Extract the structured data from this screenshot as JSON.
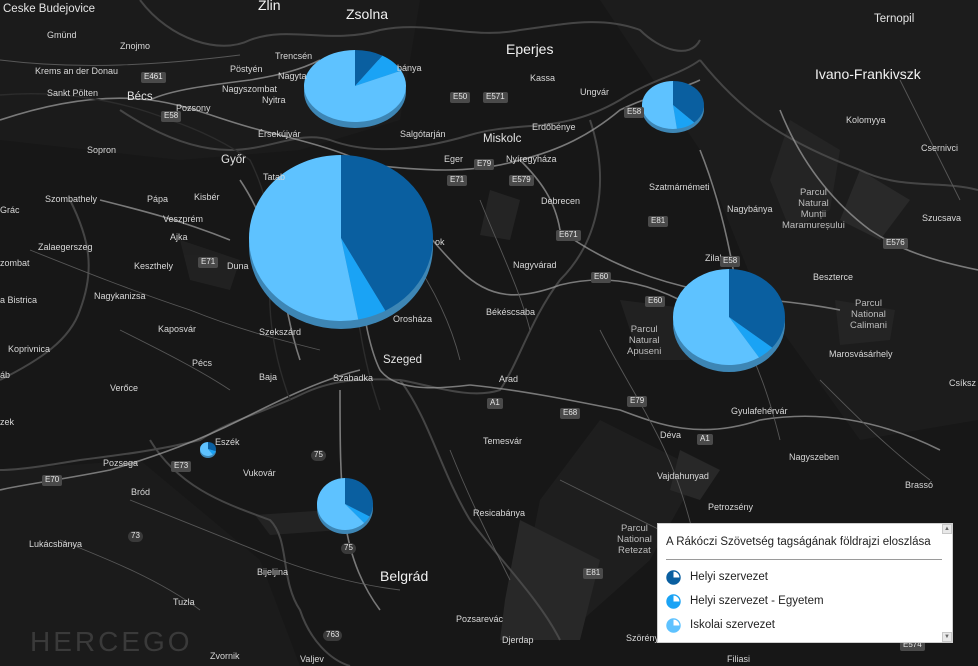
{
  "legend": {
    "title": "A Rákóczi Szövetség tagságának földrajzi eloszlása",
    "items": [
      {
        "label": "Helyi szervezet",
        "color": "#0a5fa0"
      },
      {
        "label": "Helyi szervezet - Egyetem",
        "color": "#1aa3f5"
      },
      {
        "label": "Iskolai szervezet",
        "color": "#5ec2ff"
      }
    ]
  },
  "colors": {
    "background": "#161616",
    "slice_dark": "#0a5fa0",
    "slice_mid": "#1aa3f5",
    "slice_light": "#5ec2ff"
  },
  "pie_shares": [
    {
      "name": "pie-felvidek-west",
      "shares": [
        0.09,
        0.09,
        0.82
      ]
    },
    {
      "name": "pie-ungvar",
      "shares": [
        0.38,
        0.1,
        0.52
      ]
    },
    {
      "name": "pie-budapest",
      "shares": [
        0.42,
        0.05,
        0.53
      ]
    },
    {
      "name": "pie-erdely",
      "shares": [
        0.36,
        0.05,
        0.59
      ]
    },
    {
      "name": "pie-eszek",
      "shares": [
        0.3,
        0.1,
        0.6
      ]
    },
    {
      "name": "pie-vajdasag",
      "shares": [
        0.33,
        0.05,
        0.62
      ]
    }
  ],
  "cities": {
    "ceske_budejovice": "Ceske Budejovice",
    "zlin": "Zlin",
    "zsolna": "Zsolna",
    "ternopil": "Ternopil",
    "gmund": "Gmünd",
    "znojmo": "Znojmo",
    "eperjes": "Eperjes",
    "krems": "Krems an der Donau",
    "trencsen": "Trencsén",
    "postyen": "Pöstyén",
    "rozsnyo_banya": "bánya",
    "kassa": "Kassa",
    "ivano": "Ivano-Frankivszk",
    "nagytap": "Nagyta",
    "sankt_polten": "Sankt Pölten",
    "becs": "Bécs",
    "nagyszombat": "Nagyszombat",
    "ungvar": "Ungvár",
    "nyitra": "Nyitra",
    "pozsony": "Pozsony",
    "kolomyya": "Kolomyya",
    "erdobenye": "Erdőbénye",
    "ersekujvar": "Érsekújvár",
    "salgotarjan": "Salgótarján",
    "miskolc": "Miskolc",
    "sopron": "Sopron",
    "csernivci": "Csernivci",
    "gyor": "Győr",
    "eger": "Eger",
    "nyiregyhaza": "Nyíregyháza",
    "tata": "Tatab",
    "szatmarnemeti": "Szatmárnémeti",
    "grac": "Grác",
    "szombathely": "Szombathely",
    "papa": "Pápa",
    "kisber": "Kisbér",
    "debrecen": "Debrecen",
    "nagybanya": "Nagybánya",
    "veszprem": "Veszprém",
    "ajka": "Ajka",
    "park_maramuresului": "Parcul\nNatural\nMunții\nMaramureșului",
    "szucsava": "Szucsava",
    "zalaegerszeg": "Zalaegerszeg",
    "szolnok": "ok",
    "zilah": "Zilah",
    "keszthely": "Keszthely",
    "duna": "Duna",
    "nagyvarad": "Nagyvárad",
    "beszterce": "Beszterce",
    "zombat": "zombat",
    "nagykanizsa": "Nagykanizsa",
    "bistrica": "a Bistrica",
    "bekescsaba": "Békéscsaba",
    "park_calimani": "Parcul\nNational\nCalimani",
    "kaposvar": "Kaposvár",
    "oroshaza": "Orosháza",
    "szekszard": "Szekszárd",
    "park_apuseni": "Parcul\nNatural\nApuseni",
    "koprivnica": "Koprivnica",
    "marosvasarhely": "Marosvásárhely",
    "pecs": "Pécs",
    "szeged": "Szeged",
    "bab": "áb",
    "baja": "Baja",
    "szabadka": "Szabadka",
    "arad": "Arad",
    "csiksz": "Csíksz",
    "verőce": "Verőce",
    "gyulafehervar": "Gyulafehérvár",
    "zek": "zek",
    "eszek": "Eszék",
    "temesvar": "Temesvár",
    "deva": "Déva",
    "pozsega": "Pozsega",
    "vukovar": "Vukovár",
    "vajdahunyad": "Vajdahunyad",
    "nagyszeben": "Nagyszeben",
    "brod": "Bród",
    "brasso": "Brassó",
    "petrozseny": "Petrozsény",
    "resicabanya": "Resicabánya",
    "lukacsbanya": "Lukácsbánya",
    "park_retezat": "Parcul\nNational\nRetezat",
    "bijeljina": "Bijeljina",
    "belgrad": "Belgrád",
    "tuzla": "Tuzla",
    "pozsarevac": "Pozsarevác",
    "djerdap": "Djerdap",
    "szorenyvar": "Szörényvár",
    "hercegovina": "HERCEGO",
    "zvornik": "Zvornik",
    "valjevo": "Valjev",
    "filias": "Filiasi"
  },
  "shields": {
    "e461": "E461",
    "e58": "E58",
    "e571": "E571",
    "e50": "E50",
    "e58b": "E58",
    "e71": "E71",
    "e79": "E79",
    "e579": "E579",
    "e81": "E81",
    "e671": "E671",
    "e58c": "E58",
    "e576": "E576",
    "e60": "E60",
    "e60b": "E60",
    "e71b": "E71",
    "a1": "A1",
    "e68": "E68",
    "e79b": "E79",
    "a1b": "A1",
    "e73": "E73",
    "e70": "E70",
    "r75": "75",
    "r75b": "75",
    "r73": "73",
    "r763": "763",
    "e81b": "E81",
    "e574": "E574"
  }
}
